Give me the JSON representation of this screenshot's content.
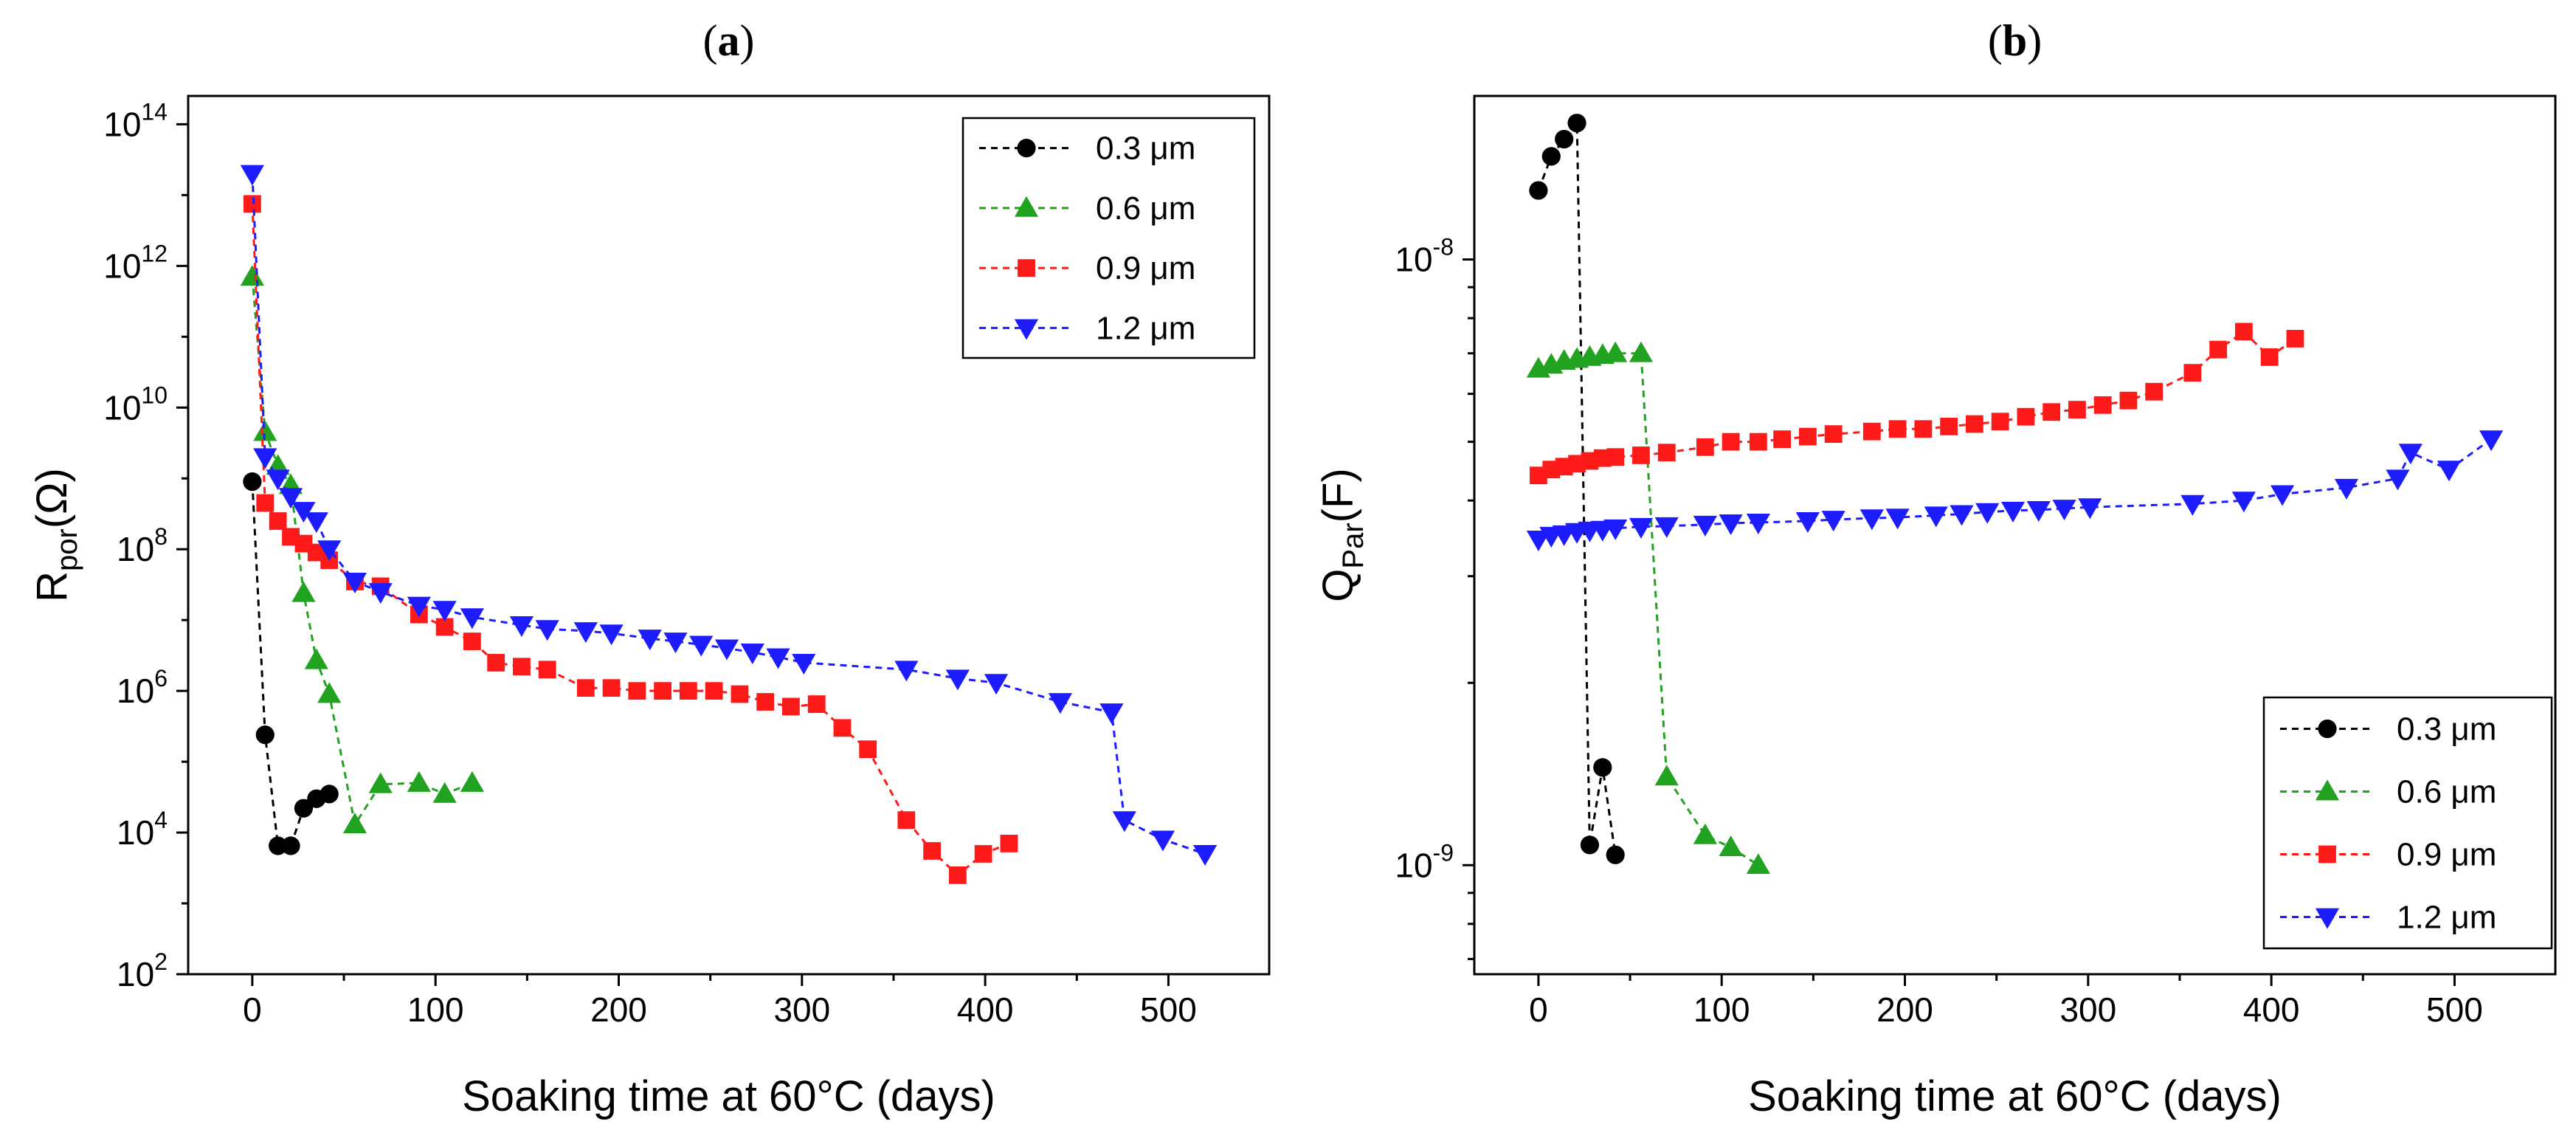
{
  "chart_data": [
    {
      "type": "scatter",
      "panel_label": {
        "open": "(",
        "letter": "a",
        "close": ")"
      },
      "xlabel": "Soaking time at 60°C (days)",
      "ylabel": {
        "main": "R",
        "sub": "por",
        "unit": "(Ω)"
      },
      "yscale": "log",
      "xlim": [
        -35,
        555
      ],
      "ylim_exp": [
        2,
        14.4
      ],
      "xticks": [
        0,
        100,
        200,
        300,
        400,
        500
      ],
      "yticks_exp": [
        2,
        4,
        6,
        8,
        10,
        12,
        14
      ],
      "ytick_base": "10",
      "legend_position": "top-right",
      "series": [
        {
          "name": "0.3 μm",
          "color": "#000000",
          "marker": "circle",
          "x": [
            0,
            7,
            14,
            21,
            28,
            35,
            42
          ],
          "y": [
            900000000.0,
            240000.0,
            6500.0,
            6500.0,
            22000.0,
            30000.0,
            35000.0
          ]
        },
        {
          "name": "0.6 μm",
          "color": "#21a321",
          "marker": "triangle-up",
          "x": [
            0,
            7,
            14,
            21,
            28,
            35,
            42,
            56,
            70,
            91,
            105,
            120
          ],
          "y": [
            700000000000.0,
            4500000000.0,
            1500000000.0,
            800000000.0,
            24000000.0,
            2700000.0,
            900000.0,
            13000.0,
            48000.0,
            50000.0,
            35000.0,
            50000.0
          ]
        },
        {
          "name": "0.9 μm",
          "color": "#ff1a1a",
          "marker": "square",
          "x": [
            0,
            7,
            14,
            21,
            28,
            35,
            42,
            56,
            70,
            91,
            105,
            120,
            133,
            147,
            161,
            182,
            196,
            210,
            224,
            238,
            252,
            266,
            280,
            294,
            308,
            322,
            336,
            357,
            371,
            385,
            399,
            413
          ],
          "y": [
            7500000000000.0,
            450000000.0,
            250000000.0,
            150000000.0,
            120000000.0,
            90000000.0,
            70000000.0,
            35000000.0,
            30000000.0,
            12000000.0,
            8000000.0,
            5000000.0,
            2500000.0,
            2200000.0,
            2000000.0,
            1100000.0,
            1100000.0,
            1000000.0,
            1000000.0,
            1000000.0,
            1000000.0,
            900000.0,
            700000.0,
            600000.0,
            650000.0,
            300000.0,
            150000.0,
            15000.0,
            5500.0,
            2500.0,
            5000.0,
            7000.0
          ]
        },
        {
          "name": "1.2 μm",
          "color": "#1c1cff",
          "marker": "triangle-down",
          "x": [
            0,
            7,
            14,
            21,
            28,
            35,
            42,
            56,
            70,
            91,
            105,
            120,
            147,
            161,
            182,
            196,
            217,
            231,
            245,
            259,
            273,
            287,
            301,
            357,
            385,
            406,
            441,
            469,
            476,
            497,
            520
          ],
          "y": [
            20000000000000.0,
            2000000000.0,
            1000000000.0,
            550000000.0,
            350000000.0,
            250000000.0,
            100000000.0,
            35000000.0,
            25000000.0,
            16000000.0,
            14000000.0,
            11000000.0,
            8500000.0,
            7500000.0,
            7000000.0,
            6500000.0,
            5500000.0,
            5000000.0,
            4500000.0,
            4000000.0,
            3500000.0,
            3000000.0,
            2500000.0,
            2000000.0,
            1500000.0,
            1300000.0,
            700000.0,
            500000.0,
            15000.0,
            8000.0,
            5000.0
          ]
        }
      ]
    },
    {
      "type": "scatter",
      "panel_label": {
        "open": "(",
        "letter": "b",
        "close": ")"
      },
      "xlabel": "Soaking time at 60°C (days)",
      "ylabel": {
        "main": "Q",
        "sub": "Par",
        "unit": "(F)"
      },
      "yscale": "log",
      "xlim": [
        -35,
        555
      ],
      "ylim_exp": [
        -9.18,
        -7.73
      ],
      "xticks": [
        0,
        100,
        200,
        300,
        400,
        500
      ],
      "yticks_exp": [
        -9,
        -8
      ],
      "ytick_base": "10",
      "legend_position": "bottom-right",
      "series": [
        {
          "name": "0.3 μm",
          "color": "#000000",
          "marker": "circle",
          "x": [
            0,
            7,
            14,
            21,
            28,
            35,
            42
          ],
          "y": [
            1.3e-08,
            1.48e-08,
            1.58e-08,
            1.68e-08,
            1.08e-09,
            1.45e-09,
            1.04e-09
          ]
        },
        {
          "name": "0.6 μm",
          "color": "#21a321",
          "marker": "triangle-up",
          "x": [
            0,
            7,
            14,
            21,
            28,
            35,
            42,
            56,
            70,
            91,
            105,
            120
          ],
          "y": [
            6.6e-09,
            6.7e-09,
            6.8e-09,
            6.85e-09,
            6.9e-09,
            6.95e-09,
            7e-09,
            7e-09,
            1.4e-09,
            1.12e-09,
            1.07e-09,
            1e-09
          ]
        },
        {
          "name": "0.9 μm",
          "color": "#ff1a1a",
          "marker": "square",
          "x": [
            0,
            7,
            14,
            21,
            28,
            35,
            42,
            56,
            70,
            91,
            105,
            120,
            133,
            147,
            161,
            182,
            196,
            210,
            224,
            238,
            252,
            266,
            280,
            294,
            308,
            322,
            336,
            357,
            371,
            385,
            399,
            413
          ],
          "y": [
            4.4e-09,
            4.5e-09,
            4.55e-09,
            4.6e-09,
            4.65e-09,
            4.7e-09,
            4.72e-09,
            4.75e-09,
            4.8e-09,
            4.9e-09,
            5e-09,
            5e-09,
            5.05e-09,
            5.1e-09,
            5.15e-09,
            5.2e-09,
            5.25e-09,
            5.25e-09,
            5.3e-09,
            5.35e-09,
            5.4e-09,
            5.5e-09,
            5.6e-09,
            5.65e-09,
            5.75e-09,
            5.85e-09,
            6.05e-09,
            6.5e-09,
            7.1e-09,
            7.6e-09,
            6.9e-09,
            7.4e-09
          ]
        },
        {
          "name": "1.2 μm",
          "color": "#1c1cff",
          "marker": "triangle-down",
          "x": [
            0,
            7,
            14,
            21,
            28,
            35,
            42,
            56,
            70,
            91,
            105,
            120,
            147,
            161,
            182,
            196,
            217,
            231,
            245,
            259,
            273,
            287,
            301,
            357,
            385,
            406,
            441,
            469,
            476,
            497,
            520
          ],
          "y": [
            3.45e-09,
            3.5e-09,
            3.52e-09,
            3.55e-09,
            3.57e-09,
            3.58e-09,
            3.6e-09,
            3.62e-09,
            3.63e-09,
            3.65e-09,
            3.67e-09,
            3.68e-09,
            3.7e-09,
            3.72e-09,
            3.74e-09,
            3.75e-09,
            3.78e-09,
            3.8e-09,
            3.83e-09,
            3.85e-09,
            3.86e-09,
            3.88e-09,
            3.9e-09,
            3.95e-09,
            4e-09,
            4.1e-09,
            4.2e-09,
            4.35e-09,
            4.8e-09,
            4.5e-09,
            5.05e-09
          ]
        }
      ]
    }
  ]
}
